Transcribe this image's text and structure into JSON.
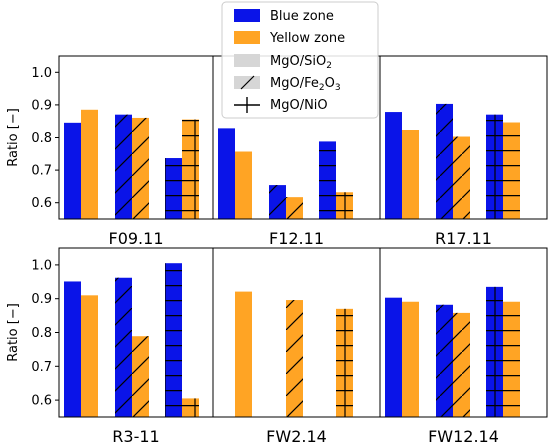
{
  "chart_data": {
    "type": "bar",
    "ylabel": "Ratio [−]",
    "ylim": [
      0.55,
      1.05
    ],
    "yticks": [
      "0.6",
      "0.7",
      "0.8",
      "0.9",
      "1.0"
    ],
    "grid": false,
    "legend_position": "top-center",
    "series": [
      {
        "name": "Blue zone",
        "color": "#0a14e8"
      },
      {
        "name": "Yellow zone",
        "color": "#ffa424"
      }
    ],
    "ratio_groups": [
      {
        "name": "MgO/SiO",
        "sub": "2",
        "hatch": "none"
      },
      {
        "name": "MgO/Fe",
        "sub": "2",
        "tail": "O",
        "sub2": "3",
        "hatch": "diagonal"
      },
      {
        "name": "MgO/NiO",
        "hatch": "grid"
      }
    ],
    "panels": [
      {
        "name": "F09.11",
        "row": 0,
        "col": 0,
        "values": [
          [
            0.845,
            0.885
          ],
          [
            0.87,
            0.86
          ],
          [
            0.737,
            0.855
          ]
        ]
      },
      {
        "name": "F12.11",
        "row": 0,
        "col": 1,
        "values": [
          [
            0.828,
            0.757
          ],
          [
            0.654,
            0.617
          ],
          [
            0.788,
            0.632
          ]
        ]
      },
      {
        "name": "R17.11",
        "row": 0,
        "col": 2,
        "values": [
          [
            0.878,
            0.823
          ],
          [
            0.903,
            0.803
          ],
          [
            0.87,
            0.846
          ]
        ]
      },
      {
        "name": "R3-11",
        "row": 1,
        "col": 0,
        "values": [
          [
            0.951,
            0.91
          ],
          [
            0.962,
            0.789
          ],
          [
            1.005,
            0.605
          ]
        ]
      },
      {
        "name": "FW2.14",
        "row": 1,
        "col": 1,
        "values": [
          [
            null,
            0.921
          ],
          [
            null,
            0.896
          ],
          [
            null,
            0.87
          ]
        ]
      },
      {
        "name": "FW12.14",
        "row": 1,
        "col": 2,
        "values": [
          [
            0.903,
            0.891
          ],
          [
            0.882,
            0.858
          ],
          [
            0.935,
            0.891
          ]
        ]
      }
    ]
  }
}
